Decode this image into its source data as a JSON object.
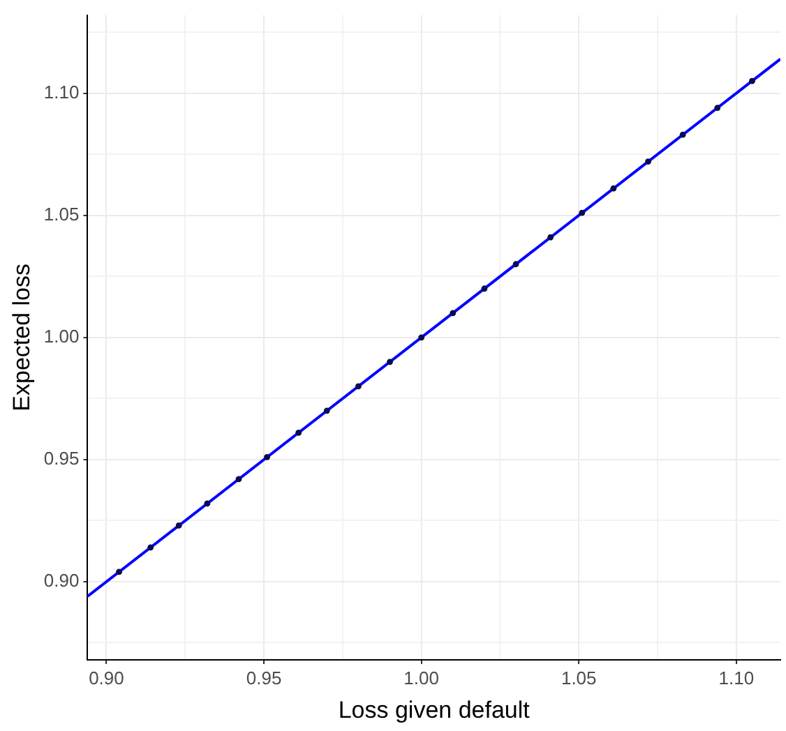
{
  "chart_data": {
    "type": "scatter",
    "xlabel": "Loss given default",
    "ylabel": "Expected loss",
    "xlim": [
      0.894,
      1.114
    ],
    "ylim": [
      0.868,
      1.132
    ],
    "xticks": [
      {
        "value": 0.9,
        "label": "0.90"
      },
      {
        "value": 0.925,
        "label": null
      },
      {
        "value": 0.95,
        "label": "0.95"
      },
      {
        "value": 0.975,
        "label": null
      },
      {
        "value": 1.0,
        "label": "1.00"
      },
      {
        "value": 1.025,
        "label": null
      },
      {
        "value": 1.05,
        "label": "1.05"
      },
      {
        "value": 1.075,
        "label": null
      },
      {
        "value": 1.1,
        "label": "1.10"
      }
    ],
    "yticks": [
      {
        "value": 0.875,
        "label": null
      },
      {
        "value": 0.9,
        "label": "0.90"
      },
      {
        "value": 0.925,
        "label": null
      },
      {
        "value": 0.95,
        "label": "0.95"
      },
      {
        "value": 0.975,
        "label": null
      },
      {
        "value": 1.0,
        "label": "1.00"
      },
      {
        "value": 1.025,
        "label": null
      },
      {
        "value": 1.05,
        "label": "1.05"
      },
      {
        "value": 1.075,
        "label": null
      },
      {
        "value": 1.1,
        "label": "1.10"
      },
      {
        "value": 1.125,
        "label": null
      }
    ],
    "grid": true,
    "legend": false,
    "series": [
      {
        "type": "line",
        "color": "#0000ff",
        "marker": "none",
        "line_style": "solid",
        "x": [
          0.894,
          1.114
        ],
        "values": [
          0.894,
          1.114
        ]
      },
      {
        "color": "#0a0a50",
        "marker": "circle",
        "x": [
          0.904,
          0.914,
          0.923,
          0.932,
          0.942,
          0.951,
          0.961,
          0.97,
          0.98,
          0.99,
          1.0,
          1.01,
          1.02,
          1.03,
          1.041,
          1.051,
          1.061,
          1.072,
          1.083,
          1.094,
          1.105
        ],
        "values": [
          0.904,
          0.914,
          0.923,
          0.932,
          0.942,
          0.951,
          0.961,
          0.97,
          0.98,
          0.99,
          1.0,
          1.01,
          1.02,
          1.03,
          1.041,
          1.051,
          1.061,
          1.072,
          1.083,
          1.094,
          1.105
        ]
      }
    ]
  }
}
